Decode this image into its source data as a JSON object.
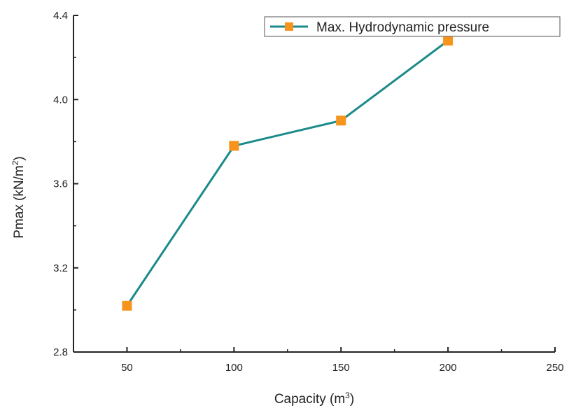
{
  "chart_data": {
    "type": "line",
    "title": "",
    "xlabel": {
      "base": "Capacity (m",
      "sup": "3",
      "tail": ")"
    },
    "ylabel": {
      "base": "Pmax (kN/m",
      "sup": "2",
      "tail": ")"
    },
    "xlim": [
      25,
      250
    ],
    "ylim": [
      2.8,
      4.4
    ],
    "x_ticks": [
      50,
      100,
      150,
      200,
      250
    ],
    "x_tick_labels": [
      "50",
      "100",
      "150",
      "200",
      "250"
    ],
    "y_ticks": [
      2.8,
      3.2,
      3.6,
      4.0,
      4.4
    ],
    "y_tick_labels": [
      "2.8",
      "3.2",
      "3.6",
      "4.0",
      "4.4"
    ],
    "grid": false,
    "legend_position": "top-right",
    "series": [
      {
        "name": "Max. Hydrodynamic pressure",
        "x": [
          50,
          100,
          150,
          200
        ],
        "y": [
          3.02,
          3.78,
          3.9,
          4.28
        ],
        "line_color": "#1b8a8a",
        "marker_color": "#f7941d",
        "marker": "square"
      }
    ]
  }
}
